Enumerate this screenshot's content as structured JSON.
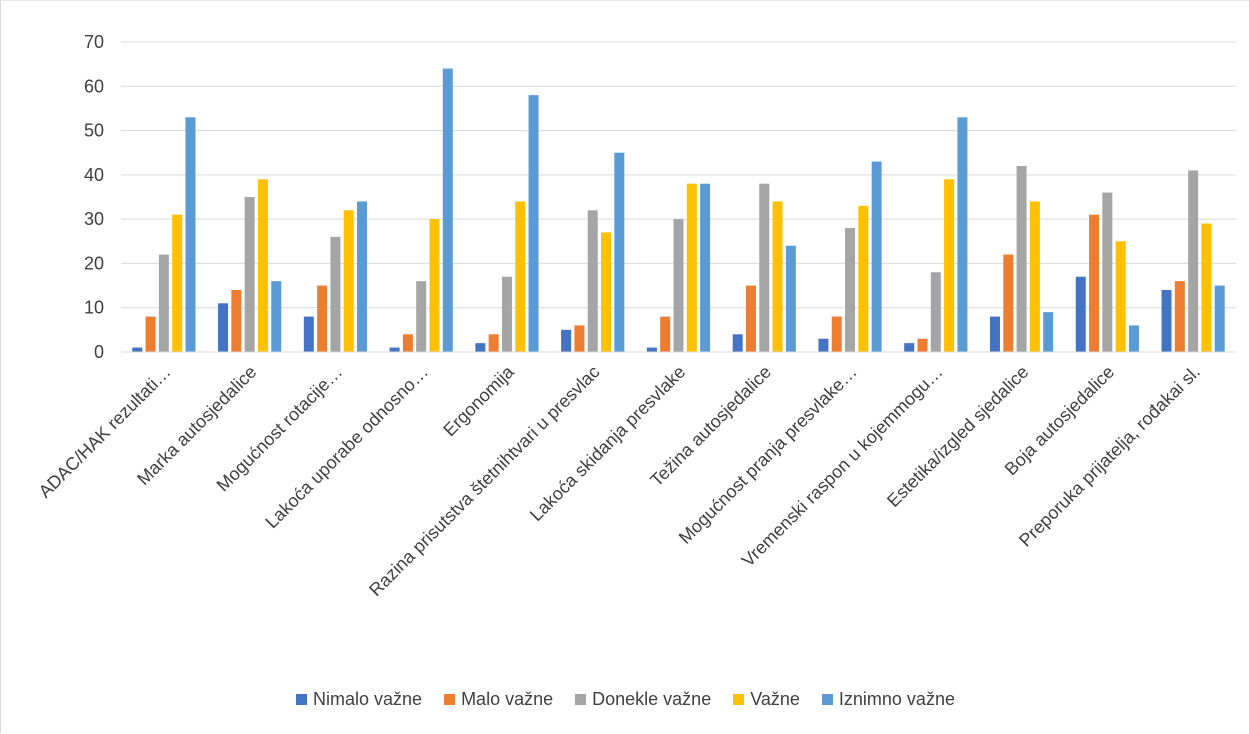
{
  "chart_data": {
    "type": "bar",
    "title": "",
    "xlabel": "",
    "ylabel": "",
    "ylim": [
      0,
      70
    ],
    "yticks": [
      0,
      10,
      20,
      30,
      40,
      50,
      60,
      70
    ],
    "grid": true,
    "legend_position": "bottom",
    "categories": [
      "ADAC/HAK rezultati…",
      "Marka autosjedalice",
      "Mogućnost rotacije…",
      "Lakoća uporabe odnosno…",
      "Ergonomija",
      "Razina prisutstva štetnihtvari u presvlac",
      "Lakoća skidanja presvlake",
      "Težina autosjedalice",
      "Mogućnost pranja presvlake…",
      "Vremenski raspon u kojemmogu…",
      "Estetika/izgled sjedalice",
      "Boja autosjedalice",
      "Preporuka prijatelja, rođakai sl."
    ],
    "series": [
      {
        "name": "Nimalo važne",
        "color": "#4472c4",
        "values": [
          1,
          11,
          8,
          1,
          2,
          5,
          1,
          4,
          3,
          2,
          8,
          17,
          14
        ]
      },
      {
        "name": "Malo važne",
        "color": "#ed7d31",
        "values": [
          8,
          14,
          15,
          4,
          4,
          6,
          8,
          15,
          8,
          3,
          22,
          31,
          16
        ]
      },
      {
        "name": "Donekle važne",
        "color": "#a5a5a5",
        "values": [
          22,
          35,
          26,
          16,
          17,
          32,
          30,
          38,
          28,
          18,
          42,
          36,
          41
        ]
      },
      {
        "name": "Važne",
        "color": "#ffc000",
        "values": [
          31,
          39,
          32,
          30,
          34,
          27,
          38,
          34,
          33,
          39,
          34,
          25,
          29
        ]
      },
      {
        "name": "Iznimno važne",
        "color": "#5b9bd5",
        "values": [
          53,
          16,
          34,
          64,
          58,
          45,
          38,
          24,
          43,
          53,
          9,
          6,
          15
        ]
      }
    ]
  }
}
